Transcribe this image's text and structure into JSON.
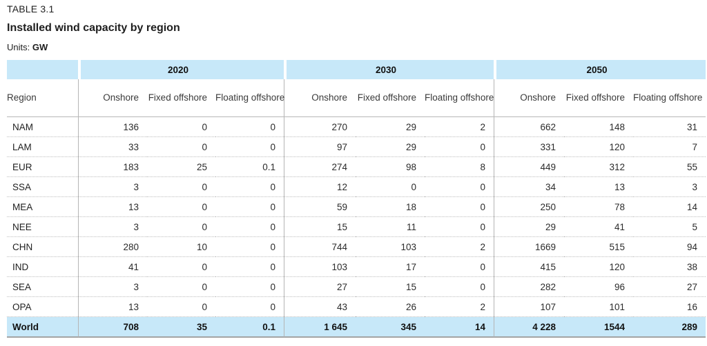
{
  "header": {
    "table_label": "TABLE 3.1",
    "title": "Installed wind capacity by region",
    "units_label": "Units:",
    "units_value": "GW"
  },
  "table": {
    "region_header": "Region",
    "year_groups": [
      "2020",
      "2030",
      "2050"
    ],
    "sub_headers": [
      "Onshore",
      "Fixed offshore",
      "Floating offshore"
    ],
    "rows": [
      {
        "region": "NAM",
        "values": [
          "136",
          "0",
          "0",
          "270",
          "29",
          "2",
          "662",
          "148",
          "31"
        ]
      },
      {
        "region": "LAM",
        "values": [
          "33",
          "0",
          "0",
          "97",
          "29",
          "0",
          "331",
          "120",
          "7"
        ]
      },
      {
        "region": "EUR",
        "values": [
          "183",
          "25",
          "0.1",
          "274",
          "98",
          "8",
          "449",
          "312",
          "55"
        ]
      },
      {
        "region": "SSA",
        "values": [
          "3",
          "0",
          "0",
          "12",
          "0",
          "0",
          "34",
          "13",
          "3"
        ]
      },
      {
        "region": "MEA",
        "values": [
          "13",
          "0",
          "0",
          "59",
          "18",
          "0",
          "250",
          "78",
          "14"
        ]
      },
      {
        "region": "NEE",
        "values": [
          "3",
          "0",
          "0",
          "15",
          "11",
          "0",
          "29",
          "41",
          "5"
        ]
      },
      {
        "region": "CHN",
        "values": [
          "280",
          "10",
          "0",
          "744",
          "103",
          "2",
          "1669",
          "515",
          "94"
        ]
      },
      {
        "region": "IND",
        "values": [
          "41",
          "0",
          "0",
          "103",
          "17",
          "0",
          "415",
          "120",
          "38"
        ]
      },
      {
        "region": "SEA",
        "values": [
          "3",
          "0",
          "0",
          "27",
          "15",
          "0",
          "282",
          "96",
          "27"
        ]
      },
      {
        "region": "OPA",
        "values": [
          "13",
          "0",
          "0",
          "43",
          "26",
          "2",
          "107",
          "101",
          "16"
        ]
      }
    ],
    "total_row": {
      "region": "World",
      "values": [
        "708",
        "35",
        "0.1",
        "1 645",
        "345",
        "14",
        "4 228",
        "1544",
        "289"
      ]
    }
  },
  "colors": {
    "band_blue": "#c7e8f9",
    "line_gray": "#b5b5b5",
    "dot_gray": "#bdbdbd",
    "bottom_gray": "#a3a3a3",
    "text_dark": "#1e1e1e",
    "text_num": "#2b2b2b",
    "text_head": "#3a3a3a"
  }
}
